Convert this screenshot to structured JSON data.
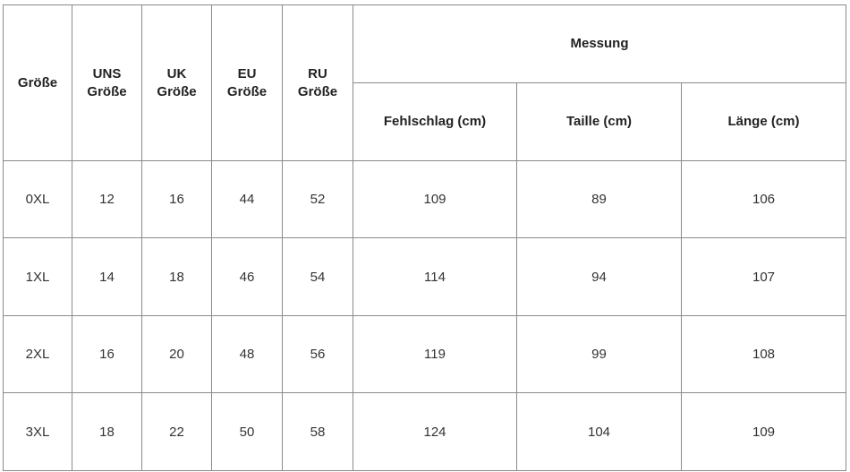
{
  "header": {
    "size": "Größe",
    "us_size": [
      "UNS",
      "Größe"
    ],
    "uk_size": [
      "UK",
      "Größe"
    ],
    "eu_size": [
      "EU",
      "Größe"
    ],
    "ru_size": [
      "RU",
      "Größe"
    ],
    "measurement": "Messung",
    "bust": "Fehlschlag (cm)",
    "waist": "Taille (cm)",
    "length": "Länge (cm)"
  },
  "rows": [
    [
      "0XL",
      "12",
      "16",
      "44",
      "52",
      "109",
      "89",
      "106"
    ],
    [
      "1XL",
      "14",
      "18",
      "46",
      "54",
      "114",
      "94",
      "107"
    ],
    [
      "2XL",
      "16",
      "20",
      "48",
      "56",
      "119",
      "99",
      "108"
    ],
    [
      "3XL",
      "18",
      "22",
      "50",
      "58",
      "124",
      "104",
      "109"
    ]
  ]
}
